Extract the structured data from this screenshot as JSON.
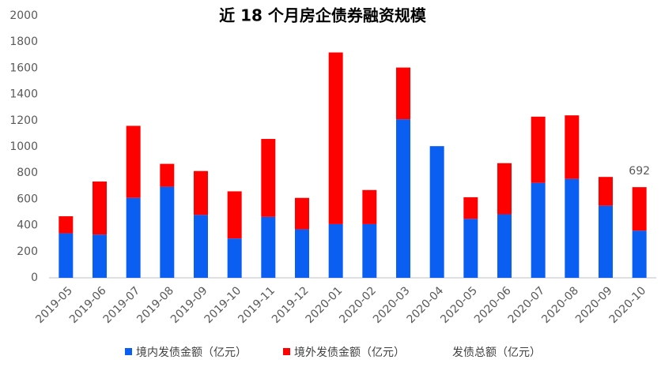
{
  "chart_data": {
    "type": "stacked_bar",
    "title": "近 18 个月房企债券融资规模",
    "categories": [
      "2019-05",
      "2019-06",
      "2019-07",
      "2019-08",
      "2019-09",
      "2019-10",
      "2019-11",
      "2019-12",
      "2020-01",
      "2020-02",
      "2020-03",
      "2020-04",
      "2020-05",
      "2020-06",
      "2020-07",
      "2020-08",
      "2020-09",
      "2020-10"
    ],
    "series": [
      {
        "name": "境内发债金额（亿元）",
        "color": "#0b5ef2",
        "values": [
          340,
          330,
          610,
          695,
          480,
          300,
          465,
          370,
          410,
          410,
          1210,
          1005,
          450,
          485,
          725,
          755,
          550,
          360
        ]
      },
      {
        "name": "境外发债金额（亿元）",
        "color": "#ff0000",
        "values": [
          130,
          405,
          550,
          175,
          335,
          360,
          595,
          240,
          1310,
          260,
          395,
          0,
          165,
          390,
          505,
          485,
          220,
          332
        ]
      },
      {
        "name": "发债总额（亿元）",
        "color": null,
        "values": [
          null,
          null,
          null,
          null,
          null,
          null,
          null,
          null,
          null,
          null,
          null,
          null,
          null,
          null,
          null,
          null,
          null,
          692
        ]
      }
    ],
    "ylim": [
      0,
      2000
    ],
    "yticks": [
      0,
      200,
      400,
      600,
      800,
      1000,
      1200,
      1400,
      1600,
      1800,
      2000
    ],
    "grid": false
  }
}
